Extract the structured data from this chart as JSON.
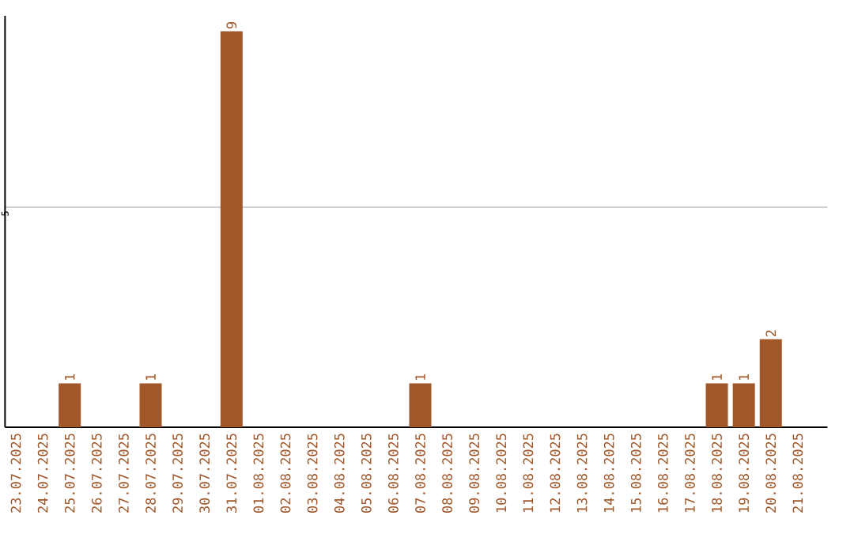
{
  "chart_data": {
    "type": "bar",
    "categories": [
      "23.07.2025",
      "24.07.2025",
      "25.07.2025",
      "26.07.2025",
      "27.07.2025",
      "28.07.2025",
      "29.07.2025",
      "30.07.2025",
      "31.07.2025",
      "01.08.2025",
      "02.08.2025",
      "03.08.2025",
      "04.08.2025",
      "05.08.2025",
      "06.08.2025",
      "07.08.2025",
      "08.08.2025",
      "09.08.2025",
      "10.08.2025",
      "11.08.2025",
      "12.08.2025",
      "13.08.2025",
      "14.08.2025",
      "15.08.2025",
      "16.08.2025",
      "17.08.2025",
      "18.08.2025",
      "19.08.2025",
      "20.08.2025",
      "21.08.2025"
    ],
    "values": [
      0,
      0,
      1,
      0,
      0,
      1,
      0,
      0,
      9,
      0,
      0,
      0,
      0,
      0,
      0,
      1,
      0,
      0,
      0,
      0,
      0,
      0,
      0,
      0,
      0,
      0,
      1,
      1,
      2,
      0
    ],
    "value_labels": [
      null,
      null,
      "1",
      null,
      null,
      "1",
      null,
      null,
      "9",
      null,
      null,
      null,
      null,
      null,
      null,
      "1",
      null,
      null,
      null,
      null,
      null,
      null,
      null,
      null,
      null,
      null,
      "1",
      "1",
      "2",
      null
    ],
    "color": "#a0572a",
    "ylim": [
      0,
      9.35
    ],
    "yticks": [
      {
        "value": 0,
        "label": null
      },
      5
    ],
    "grid": "y"
  }
}
